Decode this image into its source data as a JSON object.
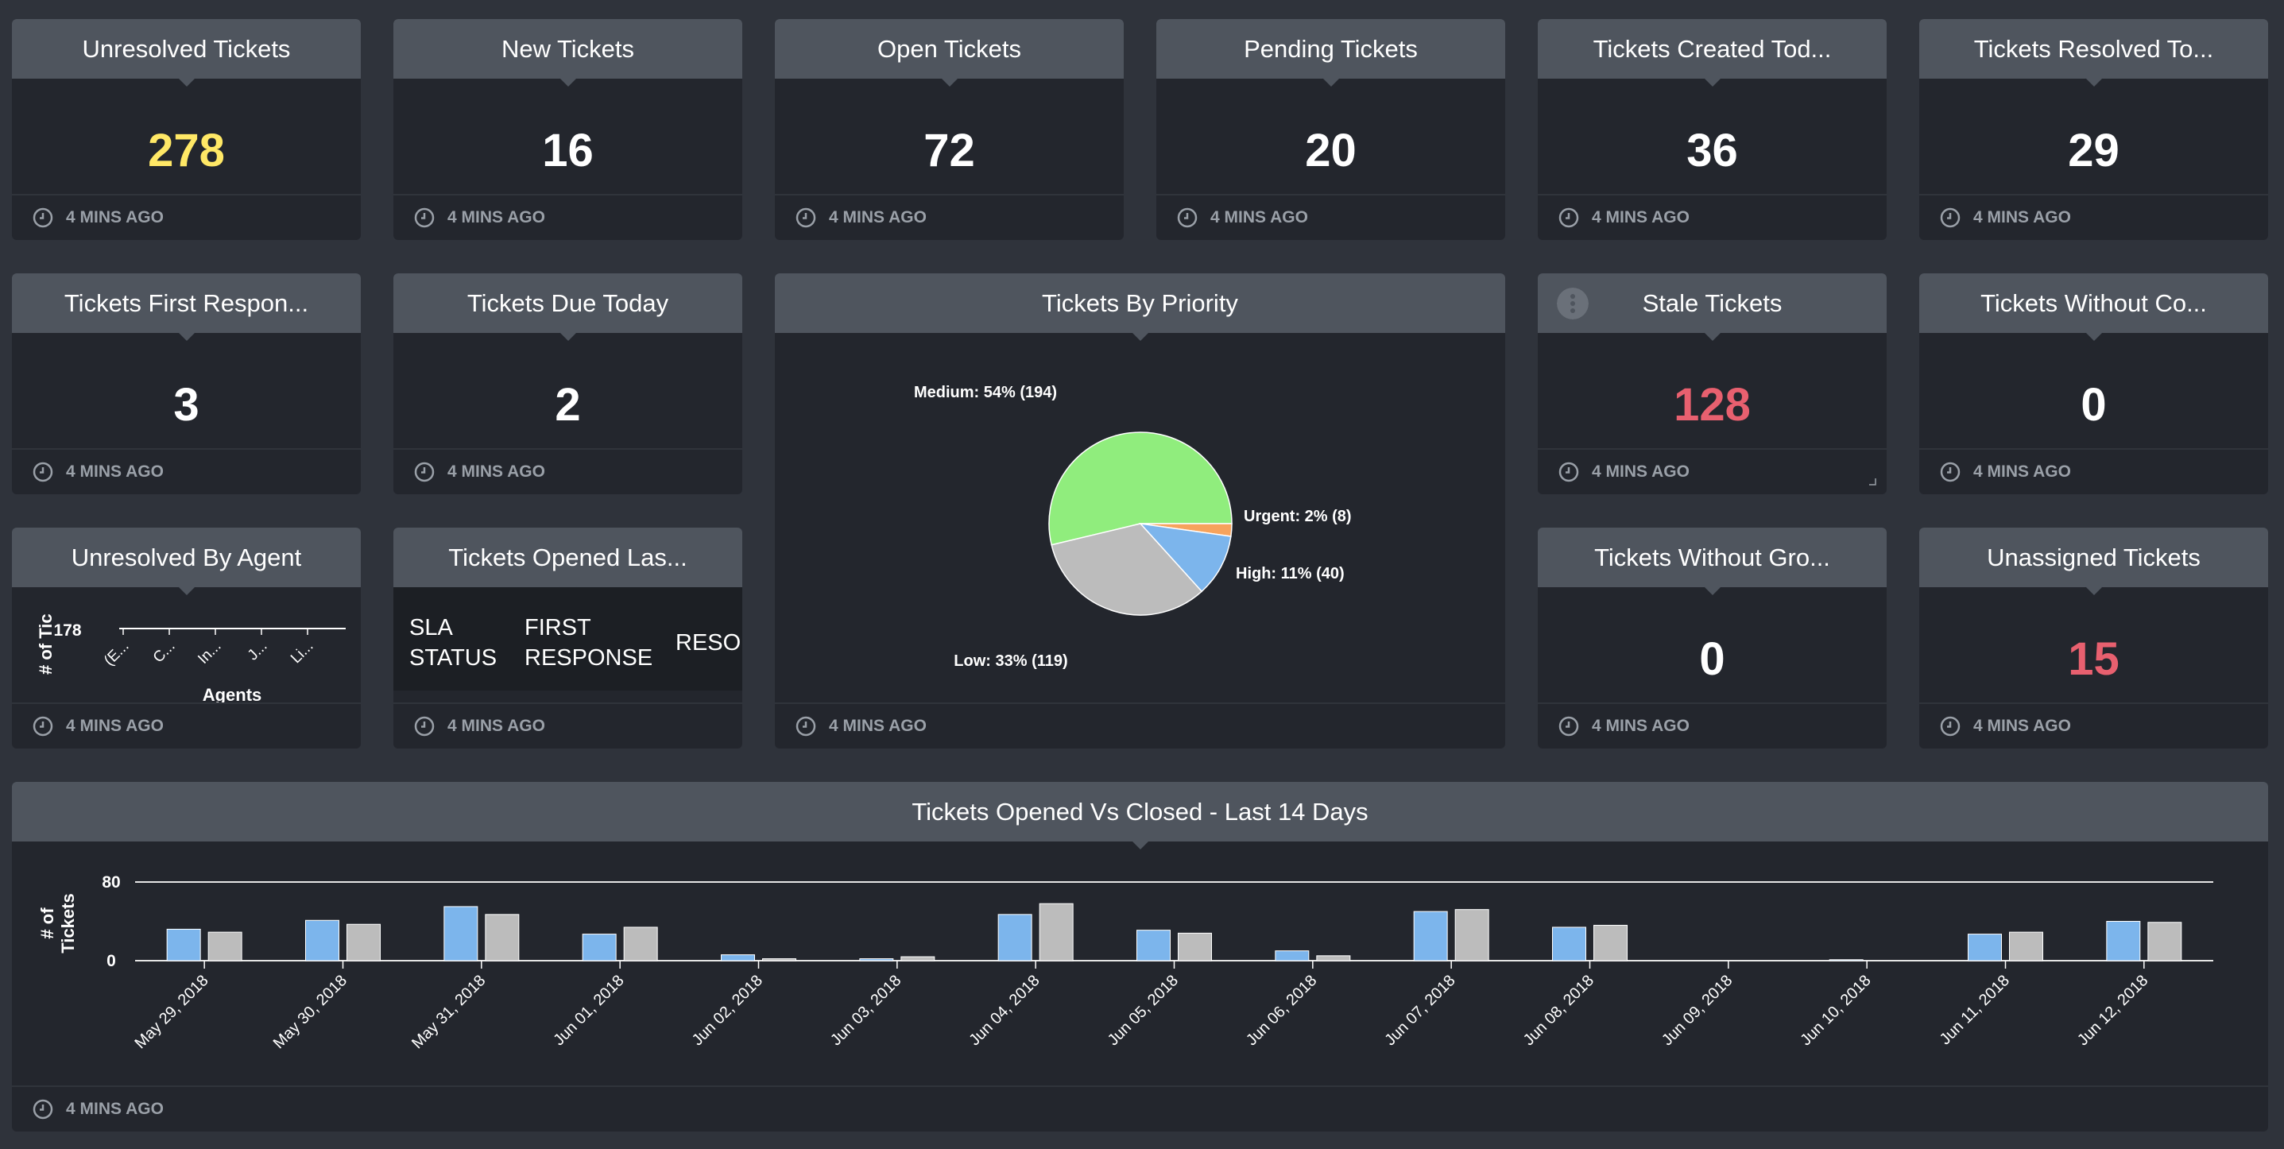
{
  "footer_text": "4 MINS AGO",
  "colors": {
    "yellow": "#ffe866",
    "red": "#e8606f",
    "blue": "#7cb5ec",
    "grey": "#bcbcbc",
    "green": "#90ed7d",
    "orange": "#f7a35c"
  },
  "widgets": {
    "unresolved": {
      "title": "Unresolved Tickets",
      "value": "278"
    },
    "new": {
      "title": "New Tickets",
      "value": "16"
    },
    "open": {
      "title": "Open Tickets",
      "value": "72"
    },
    "pending": {
      "title": "Pending Tickets",
      "value": "20"
    },
    "created_today": {
      "title": "Tickets Created Tod...",
      "value": "36"
    },
    "resolved_today": {
      "title": "Tickets Resolved To...",
      "value": "29"
    },
    "first_response": {
      "title": "Tickets First Respon...",
      "value": "3"
    },
    "due_today": {
      "title": "Tickets Due Today",
      "value": "2"
    },
    "priority": {
      "title": "Tickets By Priority"
    },
    "stale": {
      "title": "Stale Tickets",
      "value": "128"
    },
    "without_co": {
      "title": "Tickets Without Co...",
      "value": "0"
    },
    "by_agent": {
      "title": "Unresolved By Agent"
    },
    "opened_last": {
      "title": "Tickets Opened Las...",
      "columns": [
        "SLA\nSTATUS",
        "FIRST\nRESPONSE",
        "RESOL"
      ]
    },
    "without_gro": {
      "title": "Tickets Without Gro...",
      "value": "0"
    },
    "unassigned": {
      "title": "Unassigned Tickets",
      "value": "15"
    },
    "opened_vs_closed": {
      "title": "Tickets Opened Vs Closed - Last 14 Days"
    }
  },
  "chart_data": [
    {
      "type": "pie",
      "title": "Tickets By Priority",
      "slices": [
        {
          "label": "Medium: 54% (194)",
          "name": "Medium",
          "percent": 54,
          "value": 194,
          "color": "#90ed7d"
        },
        {
          "label": "Urgent: 2% (8)",
          "name": "Urgent",
          "percent": 2,
          "value": 8,
          "color": "#f7a35c"
        },
        {
          "label": "High: 11% (40)",
          "name": "High",
          "percent": 11,
          "value": 40,
          "color": "#7cb5ec"
        },
        {
          "label": "Low: 33% (119)",
          "name": "Low",
          "percent": 33,
          "value": 119,
          "color": "#bcbcbc"
        }
      ]
    },
    {
      "type": "bar",
      "title": "Unresolved By Agent",
      "ylabel": "# of Tic",
      "xlabel": "Agents",
      "y_tick": "178",
      "categories": [
        "(E...",
        "C...",
        "In...",
        "J...",
        "Li..."
      ]
    },
    {
      "type": "bar",
      "title": "Tickets Opened Vs Closed - Last 14 Days",
      "ylabel": "# of\nTickets",
      "ylim": [
        0,
        80
      ],
      "yticks": [
        "0",
        "80"
      ],
      "categories": [
        "May 29, 2018",
        "May 30, 2018",
        "May 31, 2018",
        "Jun 01, 2018",
        "Jun 02, 2018",
        "Jun 03, 2018",
        "Jun 04, 2018",
        "Jun 05, 2018",
        "Jun 06, 2018",
        "Jun 07, 2018",
        "Jun 08, 2018",
        "Jun 09, 2018",
        "Jun 10, 2018",
        "Jun 11, 2018",
        "Jun 12, 2018"
      ],
      "series": [
        {
          "color": "#7cb5ec",
          "values": [
            32,
            41,
            55,
            27,
            6,
            2,
            47,
            31,
            10,
            50,
            34,
            0,
            1,
            27,
            40
          ]
        },
        {
          "color": "#bcbcbc",
          "values": [
            29,
            37,
            47,
            34,
            2,
            4,
            58,
            28,
            5,
            52,
            36,
            0,
            0,
            29,
            39
          ]
        }
      ]
    }
  ]
}
